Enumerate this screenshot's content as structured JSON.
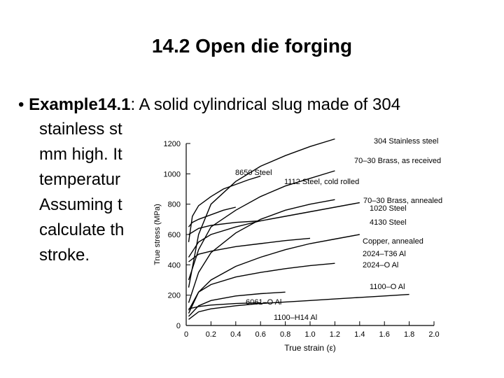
{
  "slide": {
    "title": "14.2 Open die forging",
    "bullet": "•",
    "example_label": "Example14.1",
    "line1_rest": ": A solid cylindrical slug made of 304",
    "lines": [
      "stainless st",
      "mm high. It",
      "temperatur",
      "Assuming t",
      "calculate th",
      "stroke."
    ]
  },
  "chart_data": {
    "type": "line",
    "xlabel": "True strain (ε)",
    "ylabel": "True stress (MPa)",
    "xlim": [
      0,
      2.0
    ],
    "ylim": [
      0,
      1200
    ],
    "xticks": [
      "0",
      "0.2",
      "0.4",
      "0.6",
      "0.8",
      "1.0",
      "1.2",
      "1.4",
      "1.6",
      "1.8",
      "2.0"
    ],
    "yticks": [
      "0",
      "200",
      "400",
      "600",
      "800",
      "1000",
      "1200"
    ],
    "series": [
      {
        "name": "304 Stainless steel",
        "points": [
          [
            0.02,
            250
          ],
          [
            0.1,
            600
          ],
          [
            0.2,
            800
          ],
          [
            0.4,
            950
          ],
          [
            0.6,
            1050
          ],
          [
            0.8,
            1120
          ],
          [
            1.0,
            1180
          ],
          [
            1.2,
            1230
          ]
        ]
      },
      {
        "name": "70–30 Brass, as received",
        "points": [
          [
            0.02,
            300
          ],
          [
            0.1,
            500
          ],
          [
            0.2,
            650
          ],
          [
            0.4,
            760
          ],
          [
            0.6,
            850
          ],
          [
            0.8,
            920
          ],
          [
            1.0,
            970
          ],
          [
            1.2,
            1020
          ]
        ]
      },
      {
        "name": "8650 Steel",
        "points": [
          [
            0.02,
            550
          ],
          [
            0.05,
            720
          ],
          [
            0.1,
            790
          ],
          [
            0.2,
            850
          ],
          [
            0.3,
            900
          ],
          [
            0.4,
            930
          ],
          [
            0.5,
            960
          ],
          [
            0.6,
            985
          ]
        ]
      },
      {
        "name": "1112 Steel, cold rolled",
        "points": [
          [
            0.02,
            650
          ],
          [
            0.05,
            680
          ],
          [
            0.1,
            700
          ],
          [
            0.2,
            730
          ],
          [
            0.3,
            760
          ],
          [
            0.4,
            780
          ]
        ]
      },
      {
        "name": "70–30 Brass, annealed",
        "points": [
          [
            0.02,
            150
          ],
          [
            0.1,
            350
          ],
          [
            0.2,
            480
          ],
          [
            0.4,
            610
          ],
          [
            0.6,
            700
          ],
          [
            0.8,
            760
          ],
          [
            1.0,
            800
          ],
          [
            1.2,
            830
          ]
        ]
      },
      {
        "name": "1020 Steel",
        "points": [
          [
            0.02,
            450
          ],
          [
            0.1,
            550
          ],
          [
            0.2,
            600
          ],
          [
            0.4,
            650
          ],
          [
            0.6,
            690
          ],
          [
            0.8,
            720
          ],
          [
            1.0,
            750
          ],
          [
            1.2,
            780
          ],
          [
            1.4,
            810
          ]
        ]
      },
      {
        "name": "4130 Steel",
        "points": [
          [
            0.02,
            600
          ],
          [
            0.1,
            640
          ],
          [
            0.2,
            660
          ],
          [
            0.4,
            680
          ],
          [
            0.6,
            690
          ]
        ]
      },
      {
        "name": "Copper, annealed",
        "points": [
          [
            0.02,
            80
          ],
          [
            0.1,
            220
          ],
          [
            0.2,
            300
          ],
          [
            0.4,
            390
          ],
          [
            0.6,
            450
          ],
          [
            0.8,
            500
          ],
          [
            1.0,
            540
          ],
          [
            1.2,
            570
          ],
          [
            1.4,
            600
          ]
        ]
      },
      {
        "name": "2024–T36 Al",
        "points": [
          [
            0.02,
            420
          ],
          [
            0.1,
            470
          ],
          [
            0.2,
            490
          ],
          [
            0.4,
            520
          ],
          [
            0.6,
            540
          ],
          [
            0.8,
            560
          ],
          [
            1.0,
            575
          ]
        ]
      },
      {
        "name": "2024–O Al",
        "points": [
          [
            0.02,
            100
          ],
          [
            0.1,
            220
          ],
          [
            0.2,
            270
          ],
          [
            0.4,
            320
          ],
          [
            0.6,
            350
          ],
          [
            0.8,
            375
          ],
          [
            1.0,
            395
          ],
          [
            1.2,
            410
          ]
        ]
      },
      {
        "name": "1100–O Al",
        "points": [
          [
            0.02,
            40
          ],
          [
            0.1,
            90
          ],
          [
            0.2,
            110
          ],
          [
            0.4,
            130
          ],
          [
            0.6,
            145
          ],
          [
            0.8,
            155
          ],
          [
            1.0,
            165
          ],
          [
            1.2,
            175
          ],
          [
            1.4,
            185
          ],
          [
            1.6,
            195
          ],
          [
            1.8,
            205
          ]
        ]
      },
      {
        "name": "6061–O Al",
        "points": [
          [
            0.02,
            60
          ],
          [
            0.1,
            130
          ],
          [
            0.2,
            165
          ],
          [
            0.4,
            195
          ],
          [
            0.6,
            210
          ],
          [
            0.8,
            220
          ]
        ]
      },
      {
        "name": "1100–H14 Al",
        "points": [
          [
            0.02,
            110
          ],
          [
            0.1,
            125
          ],
          [
            0.2,
            135
          ],
          [
            0.4,
            145
          ],
          [
            0.6,
            150
          ]
        ]
      }
    ],
    "grid": false,
    "legend": "inline labels"
  }
}
